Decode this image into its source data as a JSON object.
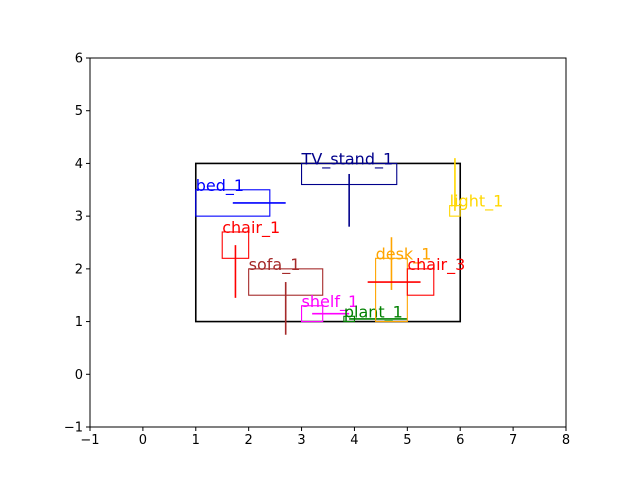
{
  "chart_data": {
    "type": "scatter",
    "title": "",
    "xlabel": "",
    "ylabel": "",
    "xlim": [
      -1,
      8
    ],
    "ylim": [
      -1,
      6
    ],
    "xticks": [
      -1,
      0,
      1,
      2,
      3,
      4,
      5,
      6,
      7,
      8
    ],
    "yticks": [
      -1,
      0,
      1,
      2,
      3,
      4,
      5,
      6
    ],
    "grid": false,
    "room": {
      "x": [
        1,
        6
      ],
      "y": [
        1,
        4
      ],
      "color": "#000000"
    },
    "objects": [
      {
        "label": "TV_stand_1",
        "color": "#00008b",
        "box": {
          "x": [
            3.0,
            4.8
          ],
          "y": [
            3.6,
            4.0
          ]
        },
        "line": {
          "x": [
            3.9,
            3.9
          ],
          "y": [
            2.8,
            3.8
          ]
        }
      },
      {
        "label": "bed_1",
        "color": "#0000ff",
        "box": {
          "x": [
            1.0,
            2.4
          ],
          "y": [
            3.0,
            3.5
          ]
        },
        "line": {
          "x": [
            1.7,
            2.7
          ],
          "y": [
            3.25,
            3.25
          ]
        }
      },
      {
        "label": "chair_1",
        "color": "#ff0000",
        "box": {
          "x": [
            1.5,
            2.0
          ],
          "y": [
            2.2,
            2.7
          ]
        },
        "line": {
          "x": [
            1.75,
            1.75
          ],
          "y": [
            1.45,
            2.45
          ]
        }
      },
      {
        "label": "sofa_1",
        "color": "#a52a2a",
        "box": {
          "x": [
            2.0,
            3.4
          ],
          "y": [
            1.5,
            2.0
          ]
        },
        "line": {
          "x": [
            2.7,
            2.7
          ],
          "y": [
            0.75,
            1.75
          ]
        }
      },
      {
        "label": "shelf_1",
        "color": "#ff00ff",
        "box": {
          "x": [
            3.0,
            3.4
          ],
          "y": [
            1.0,
            1.3
          ]
        },
        "line": {
          "x": [
            3.2,
            3.9
          ],
          "y": [
            1.15,
            1.15
          ]
        }
      },
      {
        "label": "plant_1",
        "color": "#008000",
        "box": {
          "x": [
            3.8,
            4.0
          ],
          "y": [
            1.0,
            1.1
          ]
        },
        "line": {
          "x": [
            3.9,
            5.0
          ],
          "y": [
            1.05,
            1.05
          ]
        }
      },
      {
        "label": "desk_1",
        "color": "#ffa500",
        "box": {
          "x": [
            4.4,
            5.0
          ],
          "y": [
            1.0,
            2.2
          ]
        },
        "line": {
          "x": [
            4.7,
            4.7
          ],
          "y": [
            1.6,
            2.6
          ]
        }
      },
      {
        "label": "chair_3",
        "color": "#ff0000",
        "box": {
          "x": [
            5.0,
            5.5
          ],
          "y": [
            1.5,
            2.0
          ]
        },
        "line": {
          "x": [
            4.25,
            5.25
          ],
          "y": [
            1.75,
            1.75
          ]
        }
      },
      {
        "label": "light_1",
        "color": "#ffd700",
        "box": {
          "x": [
            5.8,
            6.0
          ],
          "y": [
            3.0,
            3.2
          ]
        },
        "line": {
          "x": [
            5.9,
            5.9
          ],
          "y": [
            3.1,
            4.1
          ]
        }
      }
    ]
  }
}
